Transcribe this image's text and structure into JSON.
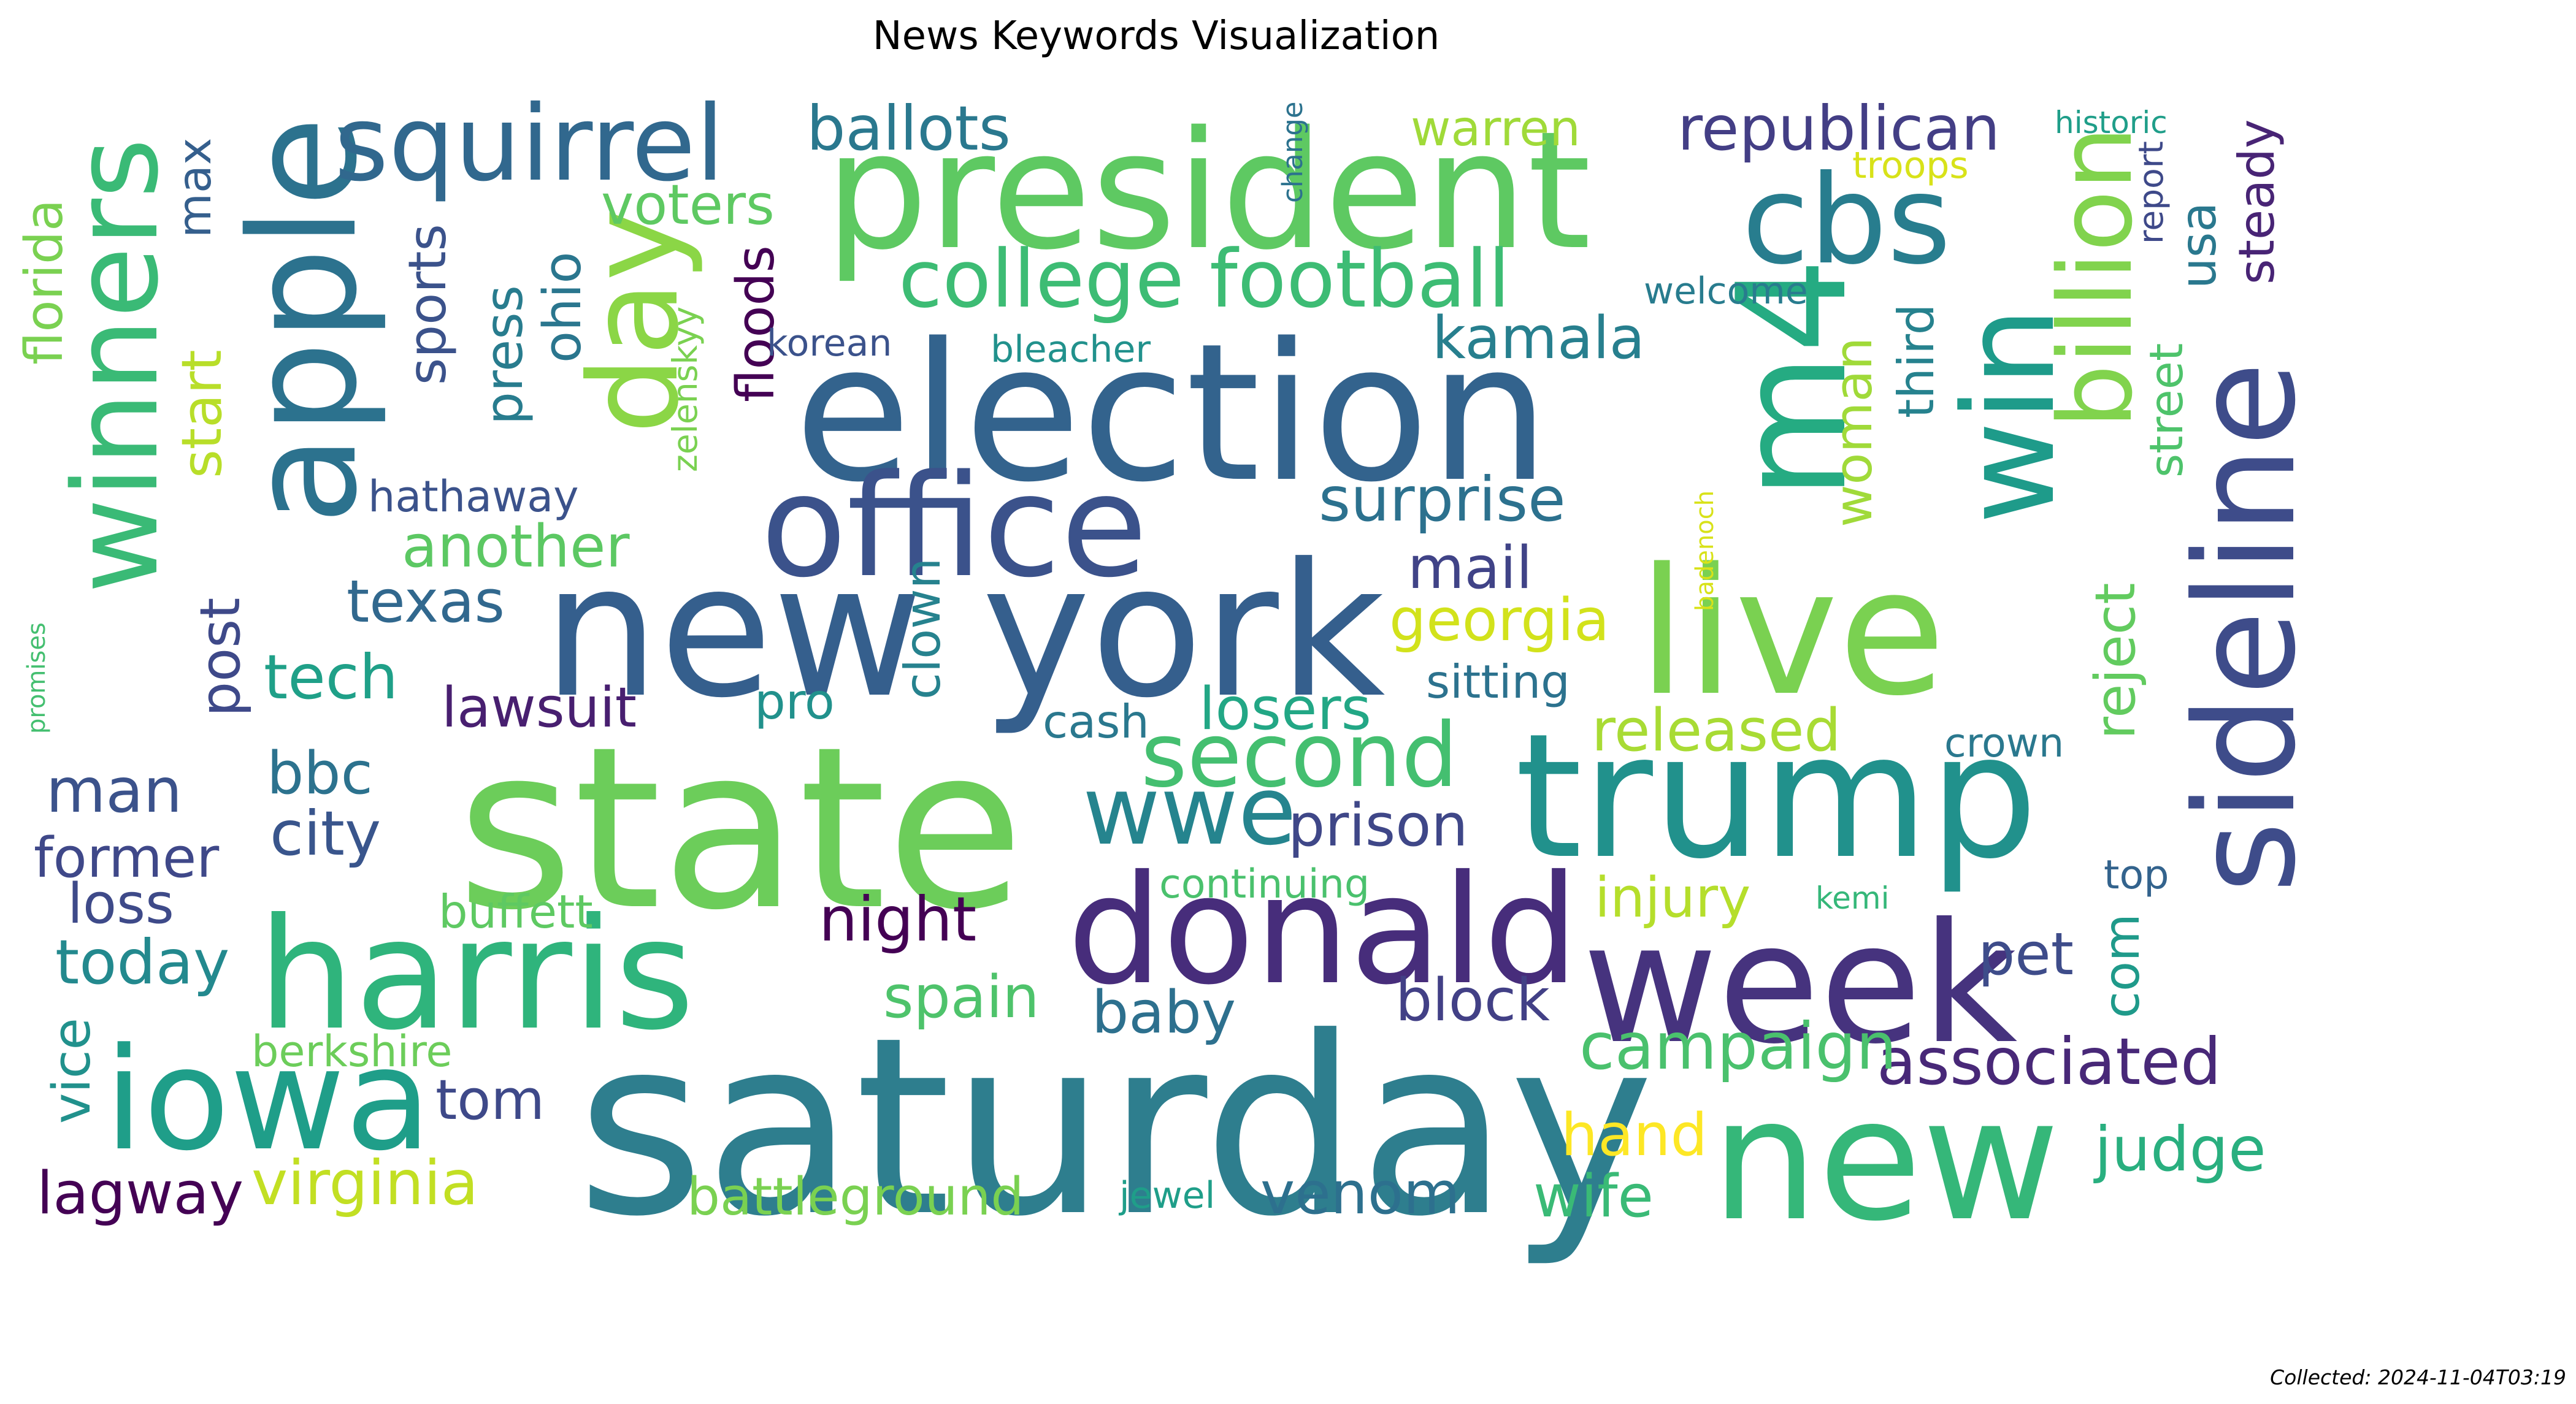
{
  "title": "News Keywords Visualization",
  "collected": "Collected: 2024-11-04T03:19",
  "words": [
    {
      "text": "saturday",
      "color": "#2e7e8e"
    },
    {
      "text": "state",
      "color": "#6ccd5a"
    },
    {
      "text": "election",
      "color": "#33638d"
    },
    {
      "text": "new york",
      "color": "#355f8d"
    },
    {
      "text": "trump",
      "color": "#21918c"
    },
    {
      "text": "president",
      "color": "#5ec962"
    },
    {
      "text": "live",
      "color": "#7ad151"
    },
    {
      "text": "harris",
      "color": "#2fb47c"
    },
    {
      "text": "new",
      "color": "#35b779"
    },
    {
      "text": "week",
      "color": "#46337e"
    },
    {
      "text": "donald",
      "color": "#472d7b"
    },
    {
      "text": "office",
      "color": "#3b528b"
    },
    {
      "text": "iowa",
      "color": "#1f9e89"
    },
    {
      "text": "apple",
      "color": "#2c728e"
    },
    {
      "text": "m4",
      "color": "#25ab82"
    },
    {
      "text": "sideline",
      "color": "#3e4c8a"
    },
    {
      "text": "winners",
      "color": "#3aba76"
    },
    {
      "text": "cbs",
      "color": "#287d8e"
    },
    {
      "text": "win",
      "color": "#1e9b8a"
    },
    {
      "text": "day",
      "color": "#8bd646"
    },
    {
      "text": "squirrel",
      "color": "#31688e"
    },
    {
      "text": "billion",
      "color": "#81d34d"
    },
    {
      "text": "second",
      "color": "#44bf70"
    },
    {
      "text": "wwe",
      "color": "#25848e"
    },
    {
      "text": "college football",
      "color": "#3dbc74"
    },
    {
      "text": "associated",
      "color": "#482878"
    },
    {
      "text": "republican",
      "color": "#433e85"
    },
    {
      "text": "campaign",
      "color": "#4ac16d"
    },
    {
      "text": "virginia",
      "color": "#c2df23"
    },
    {
      "text": "ballots",
      "color": "#2a788e"
    },
    {
      "text": "surprise",
      "color": "#2c718e"
    },
    {
      "text": "judge",
      "color": "#29af7f"
    },
    {
      "text": "released",
      "color": "#a8db34"
    },
    {
      "text": "georgia",
      "color": "#d2e21b"
    },
    {
      "text": "another",
      "color": "#5cc863"
    },
    {
      "text": "losers",
      "color": "#22a785"
    },
    {
      "text": "spain",
      "color": "#4ec36b"
    },
    {
      "text": "block",
      "color": "#424086"
    },
    {
      "text": "venom",
      "color": "#2d708e"
    },
    {
      "text": "lawsuit",
      "color": "#481f70"
    },
    {
      "text": "kamala",
      "color": "#277f8e"
    },
    {
      "text": "woman",
      "color": "#a0da39"
    },
    {
      "text": "today",
      "color": "#23898e"
    },
    {
      "text": "former",
      "color": "#3f4889"
    },
    {
      "text": "night",
      "color": "#440154"
    },
    {
      "text": "prison",
      "color": "#3f4788"
    },
    {
      "text": "texas",
      "color": "#31688e"
    },
    {
      "text": "floods",
      "color": "#440154"
    },
    {
      "text": "mail",
      "color": "#404387"
    },
    {
      "text": "tech",
      "color": "#1fa088"
    },
    {
      "text": "injury",
      "color": "#b5de2b"
    },
    {
      "text": "voters",
      "color": "#5ec962"
    },
    {
      "text": "wife",
      "color": "#3aba76"
    },
    {
      "text": "steady",
      "color": "#482475"
    },
    {
      "text": "loss",
      "color": "#3e4a89"
    },
    {
      "text": "city",
      "color": "#39558c"
    },
    {
      "text": "baby",
      "color": "#2d708e"
    },
    {
      "text": "hand",
      "color": "#fde725"
    },
    {
      "text": "battleground",
      "color": "#7ad151"
    },
    {
      "text": "reject",
      "color": "#62cb5f"
    },
    {
      "text": "sports",
      "color": "#3b528b"
    },
    {
      "text": "pet",
      "color": "#3e4c8a"
    },
    {
      "text": "street",
      "color": "#4ec36b"
    },
    {
      "text": "third",
      "color": "#26828e"
    },
    {
      "text": "press",
      "color": "#287c8e"
    },
    {
      "text": "ohio",
      "color": "#2a768e"
    },
    {
      "text": "clown",
      "color": "#26828e"
    },
    {
      "text": "post",
      "color": "#3e4989"
    },
    {
      "text": "bbc",
      "color": "#2c728e"
    },
    {
      "text": "man",
      "color": "#3b528b"
    },
    {
      "text": "florida",
      "color": "#7ad151"
    },
    {
      "text": "start",
      "color": "#b8de29"
    },
    {
      "text": "usa",
      "color": "#2a788e"
    },
    {
      "text": "com",
      "color": "#1f9a8a"
    },
    {
      "text": "vice",
      "color": "#21918c"
    },
    {
      "text": "lagway",
      "color": "#440154"
    },
    {
      "text": "tom",
      "color": "#3e4989"
    },
    {
      "text": "sitting",
      "color": "#2c728e"
    },
    {
      "text": "pro",
      "color": "#21918c"
    },
    {
      "text": "cash",
      "color": "#2a788e"
    },
    {
      "text": "buffett",
      "color": "#5ec962"
    },
    {
      "text": "berkshire",
      "color": "#6ccd5a"
    },
    {
      "text": "max",
      "color": "#355f8d"
    },
    {
      "text": "warren",
      "color": "#a0da39"
    },
    {
      "text": "hathaway",
      "color": "#3b528b"
    },
    {
      "text": "continuing",
      "color": "#4ac16d"
    },
    {
      "text": "top",
      "color": "#33638d"
    },
    {
      "text": "crown",
      "color": "#2a788e"
    },
    {
      "text": "welcome",
      "color": "#287c8e"
    },
    {
      "text": "korean",
      "color": "#3b528b"
    },
    {
      "text": "bleacher",
      "color": "#21918c"
    },
    {
      "text": "troops",
      "color": "#d8e219"
    },
    {
      "text": "report",
      "color": "#3e4989"
    },
    {
      "text": "jewel",
      "color": "#1f9e89"
    },
    {
      "text": "kemi",
      "color": "#35b779"
    },
    {
      "text": "zelenskyy",
      "color": "#7ad151"
    },
    {
      "text": "historic",
      "color": "#1f9e89"
    },
    {
      "text": "change",
      "color": "#2c728e"
    },
    {
      "text": "badenoch",
      "color": "#d8e219"
    },
    {
      "text": "promises",
      "color": "#44bf70"
    }
  ]
}
